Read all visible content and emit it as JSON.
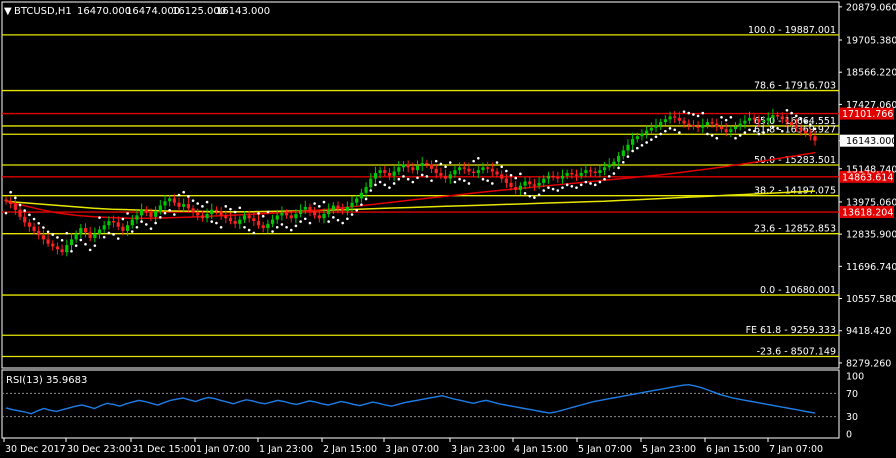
{
  "header": {
    "symbol": "BTCUSD,H1",
    "open": "16470.000",
    "high": "16474.000",
    "low": "16125.000",
    "close": "16143.000"
  },
  "colors": {
    "background": "#000000",
    "frame": "#ffffff",
    "bull_candle": "#00c800",
    "bear_candle": "#ff2020",
    "fib_line": "#e6e600",
    "horizontal_red": "#e00000",
    "ma_yellow": "#e6e600",
    "ma_red": "#e00000",
    "sar_dots": "#ffffff",
    "rsi_line": "#1e7de6",
    "price_label_red": "#e00000",
    "current_price_bg": "#ffffff"
  },
  "chart_data": [
    {
      "type": "line",
      "title": "BTCUSD,H1",
      "y_axis_ticks": [
        "20879.060",
        "19705.380",
        "18566.220",
        "17427.060",
        "16143.000",
        "15148.740",
        "13975.060",
        "12835.900",
        "11696.740",
        "10557.580",
        "9418.420",
        "8279.260"
      ],
      "y_tick_values": [
        20879.06,
        19705.38,
        18566.22,
        17427.06,
        16143.0,
        15148.74,
        13975.06,
        12835.9,
        11696.74,
        10557.58,
        9418.42,
        8279.26
      ],
      "ylim": [
        8100,
        21050
      ],
      "x_axis_ticks": [
        "30 Dec 2017",
        "30 Dec 23:00",
        "31 Dec 15:00",
        "1 Jan 07:00",
        "1 Jan 23:00",
        "2 Jan 15:00",
        "3 Jan 07:00",
        "3 Jan 23:00",
        "4 Jan 15:00",
        "5 Jan 07:00",
        "5 Jan 23:00",
        "6 Jan 15:00",
        "7 Jan 07:00"
      ],
      "current_price": "16143.000",
      "fib_levels": [
        {
          "label": "100.0 - 19887.001",
          "value": 19887.0
        },
        {
          "label": "78.6 - 17916.703",
          "value": 17916.7
        },
        {
          "label": "65.0 - 16664.551",
          "value": 16664.55
        },
        {
          "label": "61.8 - 16369.927",
          "value": 16369.93
        },
        {
          "label": "50.0 - 15283.501",
          "value": 15283.5
        },
        {
          "label": "38.2 - 14197.075",
          "value": 14197.08
        },
        {
          "label": "23.6 - 12852.853",
          "value": 12852.85
        },
        {
          "label": "0.0 - 10680.001",
          "value": 10680.0
        },
        {
          "label": "FE 61.8 - 9259.333",
          "value": 9259.33
        },
        {
          "label": "-23.6 - 8507.149",
          "value": 8507.15
        }
      ],
      "horizontal_lines": [
        {
          "label": "17101.766",
          "value": 17101.77
        },
        {
          "label": "14863.614",
          "value": 14863.61
        },
        {
          "label": "13618.204",
          "value": 13618.2
        }
      ],
      "candles_close_approx": [
        14000,
        13900,
        13700,
        13450,
        13250,
        13100,
        12950,
        12800,
        12650,
        12500,
        12400,
        12300,
        12200,
        12450,
        12650,
        12850,
        13050,
        12900,
        12700,
        12850,
        13000,
        13150,
        13300,
        13250,
        13100,
        12950,
        13150,
        13350,
        13500,
        13700,
        13600,
        13450,
        13650,
        13850,
        14000,
        14100,
        13950,
        13800,
        13900,
        13750,
        13600,
        13500,
        13400,
        13550,
        13700,
        13650,
        13500,
        13400,
        13300,
        13200,
        13350,
        13500,
        13400,
        13300,
        13150,
        13050,
        13200,
        13350,
        13500,
        13600,
        13500,
        13400,
        13550,
        13700,
        13800,
        13650,
        13500,
        13400,
        13550,
        13700,
        13850,
        13750,
        13650,
        13800,
        13950,
        14100,
        14300,
        14500,
        14800,
        15000,
        15100,
        15000,
        14900,
        15050,
        15200,
        15300,
        15200,
        15100,
        15250,
        15350,
        15300,
        15150,
        15000,
        14900,
        14800,
        14950,
        15100,
        15200,
        15150,
        15050,
        15000,
        15100,
        15200,
        15150,
        15050,
        14950,
        14800,
        14650,
        14500,
        14400,
        14550,
        14700,
        14600,
        14550,
        14650,
        14800,
        14900,
        14850,
        14800,
        14900,
        15000,
        14950,
        14900,
        15000,
        15100,
        15050,
        15000,
        15100,
        15200,
        15300,
        15400,
        15600,
        15800,
        16000,
        16200,
        16300,
        16400,
        16500,
        16600,
        16700,
        16800,
        16900,
        17000,
        16950,
        16850,
        16750,
        16700,
        16650,
        16600,
        16700,
        16800,
        16750,
        16650,
        16550,
        16450,
        16550,
        16650,
        16750,
        16850,
        16950,
        16900,
        16800,
        16850,
        16950,
        17050,
        17000,
        16900,
        16800,
        16700,
        16600,
        16500,
        16400,
        16300,
        16143
      ],
      "ma_yellow_approx": [
        14000,
        13950,
        13900,
        13850,
        13800,
        13750,
        13720,
        13700,
        13680,
        13660,
        13650,
        13640,
        13630,
        13630,
        13630,
        13640,
        13650,
        13660,
        13680,
        13700,
        13720,
        13740,
        13760,
        13780,
        13800,
        13820,
        13840,
        13860,
        13880,
        13900,
        13920,
        13940,
        13960,
        13980,
        14000,
        14030,
        14060,
        14090,
        14120,
        14150,
        14180,
        14210,
        14240,
        14270,
        14300,
        14330,
        14360
      ],
      "ma_red_approx": [
        14000,
        13850,
        13700,
        13580,
        13500,
        13450,
        13420,
        13400,
        13400,
        13410,
        13430,
        13450,
        13480,
        13510,
        13540,
        13570,
        13610,
        13650,
        13700,
        13760,
        13830,
        13900,
        13970,
        14040,
        14110,
        14180,
        14250,
        14320,
        14380,
        14440,
        14500,
        14560,
        14620,
        14680,
        14740,
        14800,
        14860,
        14920,
        14990,
        15070,
        15150,
        15240,
        15330,
        15420,
        15520,
        15620,
        15720
      ]
    },
    {
      "type": "line",
      "title": "RSI(13) 35.9683",
      "y_axis_ticks": [
        "100",
        "70",
        "30",
        "0"
      ],
      "ylim": [
        0,
        100
      ],
      "values": [
        45,
        42,
        40,
        38,
        35,
        40,
        44,
        41,
        39,
        42,
        45,
        48,
        50,
        47,
        44,
        49,
        53,
        51,
        48,
        52,
        55,
        58,
        56,
        53,
        50,
        54,
        58,
        60,
        62,
        59,
        56,
        60,
        63,
        61,
        58,
        55,
        52,
        56,
        59,
        57,
        54,
        52,
        55,
        58,
        56,
        53,
        51,
        54,
        57,
        55,
        52,
        50,
        53,
        56,
        54,
        51,
        49,
        52,
        55,
        53,
        50,
        48,
        51,
        54,
        56,
        58,
        60,
        62,
        64,
        66,
        63,
        60,
        58,
        55,
        53,
        56,
        58,
        55,
        52,
        50,
        48,
        46,
        44,
        42,
        40,
        38,
        36,
        38,
        41,
        44,
        47,
        50,
        53,
        56,
        58,
        60,
        62,
        64,
        66,
        68,
        70,
        72,
        74,
        76,
        78,
        80,
        82,
        84,
        85,
        83,
        80,
        76,
        72,
        68,
        65,
        62,
        60,
        58,
        56,
        54,
        52,
        50,
        48,
        46,
        44,
        42,
        40,
        38,
        36
      ]
    }
  ]
}
